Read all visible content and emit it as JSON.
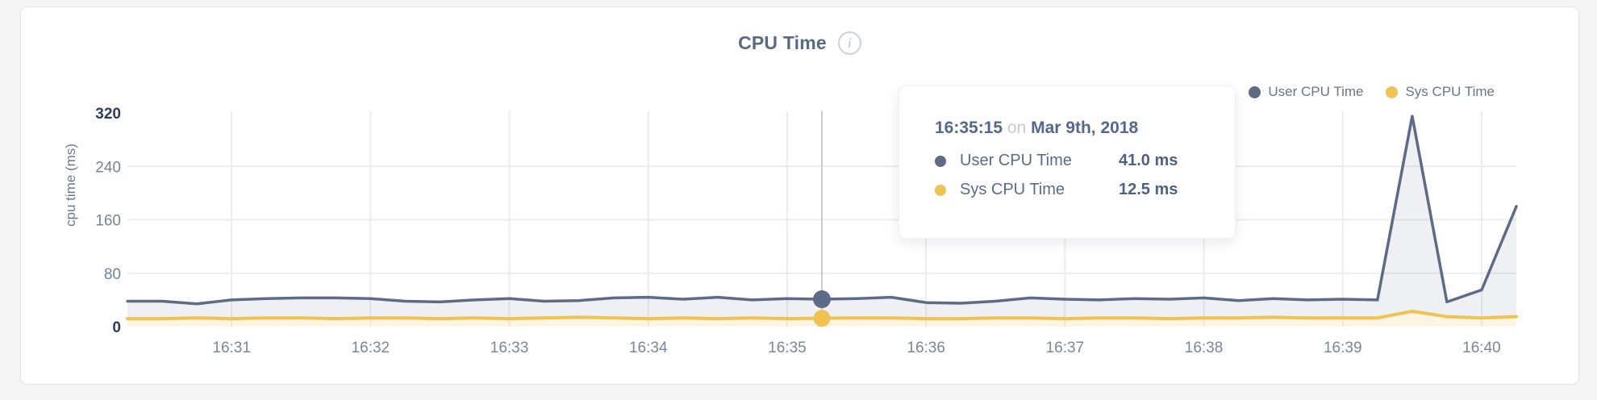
{
  "header": {
    "title": "CPU Time",
    "info_glyph": "i"
  },
  "legend": {
    "items": [
      {
        "label": "User CPU Time",
        "color": "#5d6b87"
      },
      {
        "label": "Sys CPU Time",
        "color": "#eec254"
      }
    ]
  },
  "tooltip": {
    "time": "16:35:15",
    "connector": "on",
    "date": "Mar 9th, 2018",
    "rows": [
      {
        "label": "User CPU Time",
        "value": "41.0 ms",
        "color": "#5d6b87"
      },
      {
        "label": "Sys CPU Time",
        "value": "12.5 ms",
        "color": "#eec254"
      }
    ]
  },
  "chart_data": {
    "type": "area",
    "title": "CPU Time",
    "xlabel": "",
    "ylabel": "cpu time (ms)",
    "ylim": [
      0,
      320
    ],
    "yticks": [
      0,
      80,
      160,
      240,
      320
    ],
    "xtick_labels": [
      "16:31",
      "16:32",
      "16:33",
      "16:34",
      "16:35",
      "16:36",
      "16:37",
      "16:38",
      "16:39",
      "16:40"
    ],
    "grid": true,
    "legend_position": "top-right",
    "x": [
      "16:30:15",
      "16:30:30",
      "16:30:45",
      "16:31:00",
      "16:31:15",
      "16:31:30",
      "16:31:45",
      "16:32:00",
      "16:32:15",
      "16:32:30",
      "16:32:45",
      "16:33:00",
      "16:33:15",
      "16:33:30",
      "16:33:45",
      "16:34:00",
      "16:34:15",
      "16:34:30",
      "16:34:45",
      "16:35:00",
      "16:35:15",
      "16:35:30",
      "16:35:45",
      "16:36:00",
      "16:36:15",
      "16:36:30",
      "16:36:45",
      "16:37:00",
      "16:37:15",
      "16:37:30",
      "16:37:45",
      "16:38:00",
      "16:38:15",
      "16:38:30",
      "16:38:45",
      "16:39:00",
      "16:39:15",
      "16:39:30",
      "16:39:45",
      "16:40:00",
      "16:40:15"
    ],
    "series": [
      {
        "name": "User CPU Time",
        "color": "#5d6b87",
        "fill": "rgba(93,107,135,0.10)",
        "values": [
          38,
          38,
          34,
          40,
          42,
          43,
          43,
          42,
          38,
          37,
          40,
          42,
          38,
          39,
          43,
          44,
          41,
          44,
          40,
          42,
          41,
          42,
          44,
          36,
          35,
          38,
          43,
          41,
          40,
          42,
          41,
          43,
          39,
          42,
          40,
          41,
          40,
          315,
          37,
          55,
          180
        ]
      },
      {
        "name": "Sys CPU Time",
        "color": "#eec254",
        "fill": "rgba(238,194,84,0.16)",
        "values": [
          12,
          12,
          13,
          12,
          13,
          13,
          12,
          13,
          13,
          12,
          13,
          12,
          13,
          14,
          13,
          12,
          13,
          12,
          13,
          12,
          12.5,
          13,
          13,
          12,
          12,
          13,
          13,
          12,
          13,
          13,
          12,
          13,
          13,
          14,
          13,
          13,
          13,
          23,
          15,
          13,
          15
        ]
      }
    ],
    "hover_point": {
      "time": "16:35:15",
      "date": "Mar 9th, 2018",
      "values": {
        "User CPU Time": 41.0,
        "Sys CPU Time": 12.5
      }
    }
  }
}
